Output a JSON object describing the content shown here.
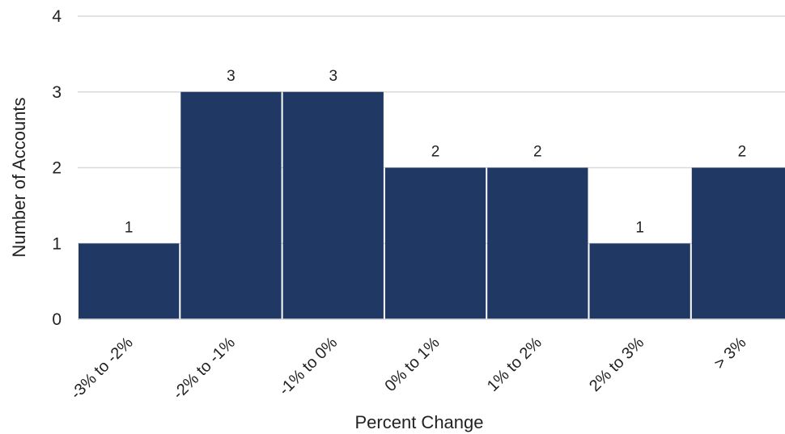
{
  "chart_data": {
    "type": "bar",
    "title": "",
    "xlabel": "Percent Change",
    "ylabel": "Number of Accounts",
    "categories": [
      "-3% to -2%",
      "-2% to -1%",
      "-1% to 0%",
      "0% to 1%",
      "1% to 2%",
      "2% to 3%",
      "> 3%"
    ],
    "values": [
      1,
      3,
      3,
      2,
      2,
      1,
      2
    ],
    "data_labels": [
      "1",
      "3",
      "3",
      "2",
      "2",
      "1",
      "2"
    ],
    "ylim": [
      0,
      4
    ],
    "yticks": [
      "0",
      "1",
      "2",
      "3",
      "4"
    ],
    "grid": true,
    "legend": "none",
    "bar_color": "#1f3864",
    "grid_color": "#d9d9d9"
  }
}
